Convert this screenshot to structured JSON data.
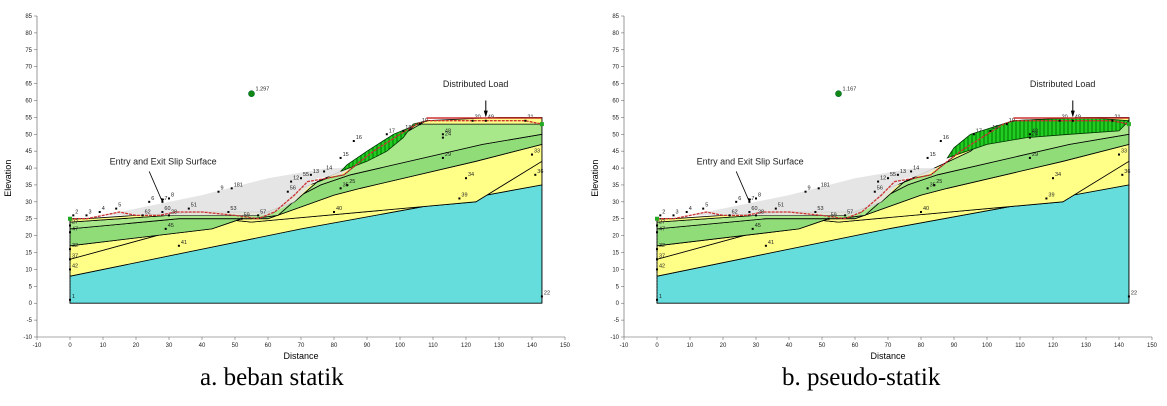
{
  "panels": [
    {
      "id": "a",
      "caption": "a. beban statik",
      "factor_of_safety": "1.297",
      "entry_exit_label": "Entry and Exit Slip Surface",
      "distributed_load_label": "Distributed Load",
      "xlabel": "Distance",
      "ylabel": "Elevation",
      "xlim": [
        -10,
        150
      ],
      "ylim": [
        -10,
        85
      ],
      "x_ticks": [
        -10,
        0,
        10,
        20,
        30,
        40,
        50,
        60,
        70,
        80,
        90,
        100,
        110,
        120,
        130,
        140,
        150
      ],
      "y_ticks": [
        -10,
        -5,
        0,
        5,
        10,
        15,
        20,
        25,
        30,
        35,
        40,
        45,
        50,
        55,
        60,
        65,
        70,
        75,
        80,
        85
      ],
      "point_labels": [
        "1",
        "2",
        "3",
        "4",
        "5",
        "6",
        "7",
        "8",
        "9",
        "181",
        "51",
        "53",
        "60",
        "59",
        "57",
        "55",
        "56",
        "62",
        "12",
        "13",
        "14",
        "15",
        "16",
        "17",
        "18",
        "19",
        "20",
        "21",
        "22",
        "24",
        "25",
        "27",
        "28",
        "29",
        "32",
        "33",
        "34",
        "35",
        "36",
        "37",
        "39",
        "40",
        "41",
        "42",
        "45",
        "47",
        "48",
        "49",
        "4948",
        "5165",
        "58",
        "61",
        "62",
        "63",
        "184"
      ]
    },
    {
      "id": "b",
      "caption": "b. pseudo-statik",
      "factor_of_safety": "1.167",
      "entry_exit_label": "Entry and Exit Slip Surface",
      "distributed_load_label": "Distributed Load",
      "xlabel": "Distance",
      "ylabel": "Elevation",
      "xlim": [
        -10,
        150
      ],
      "ylim": [
        -10,
        85
      ],
      "x_ticks": [
        -10,
        0,
        10,
        20,
        30,
        40,
        50,
        60,
        70,
        80,
        90,
        100,
        110,
        120,
        130,
        140,
        150
      ],
      "y_ticks": [
        -10,
        -5,
        0,
        5,
        10,
        15,
        20,
        25,
        30,
        35,
        40,
        45,
        50,
        55,
        60,
        65,
        70,
        75,
        80,
        85
      ],
      "point_labels": [
        "1",
        "2",
        "3",
        "4",
        "5",
        "6",
        "7",
        "8",
        "9",
        "181",
        "51",
        "53",
        "60",
        "59",
        "57",
        "55",
        "56",
        "62",
        "12",
        "13",
        "14",
        "15",
        "16",
        "17",
        "18",
        "19",
        "20",
        "21",
        "22",
        "24",
        "25",
        "27",
        "28",
        "29",
        "32",
        "33",
        "34",
        "35",
        "36",
        "37",
        "39",
        "40",
        "41",
        "42",
        "45",
        "47",
        "48",
        "49",
        "4948",
        "5165",
        "58",
        "61",
        "62",
        "63",
        "184"
      ]
    }
  ],
  "colors": {
    "bedrock": "#66dddd",
    "yellow_layer": "#ffff88",
    "light_green_layer": "#a8e88a",
    "mid_green_layer": "#8fdc78",
    "slip_mass": "#22cc22",
    "slip_hatch": "#007700",
    "surface_line": "#cc3333",
    "boundary_line": "#000000",
    "grey_region": "#e2e2e2",
    "fos_marker": "#118811"
  }
}
